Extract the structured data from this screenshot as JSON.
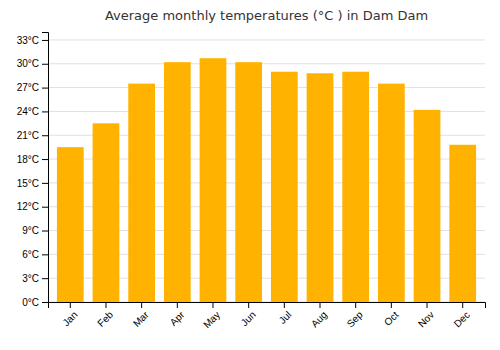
{
  "chart_data": {
    "type": "bar",
    "title": "Average monthly temperatures (°C ) in Dam Dam",
    "categories": [
      "Jan",
      "Feb",
      "Mar",
      "Apr",
      "May",
      "Jun",
      "Jul",
      "Aug",
      "Sep",
      "Oct",
      "Nov",
      "Dec"
    ],
    "values": [
      19.5,
      22.5,
      27.5,
      30.2,
      30.7,
      30.2,
      29.0,
      28.8,
      29.0,
      27.5,
      24.2,
      19.8
    ],
    "color": "#FFB300",
    "ylim": [
      0,
      34
    ],
    "yticks": [
      {
        "value": 0,
        "label": "0°C"
      },
      {
        "value": 3,
        "label": "3°C"
      },
      {
        "value": 6,
        "label": "6°C"
      },
      {
        "value": 9,
        "label": "9°C"
      },
      {
        "value": 12,
        "label": "12°C"
      },
      {
        "value": 15,
        "label": "15°C"
      },
      {
        "value": 18,
        "label": "18°C"
      },
      {
        "value": 21,
        "label": "21°C"
      },
      {
        "value": 24,
        "label": "24°C"
      },
      {
        "value": 27,
        "label": "27°C"
      },
      {
        "value": 30,
        "label": "30°C"
      },
      {
        "value": 33,
        "label": "33°C"
      }
    ],
    "grid": true
  }
}
